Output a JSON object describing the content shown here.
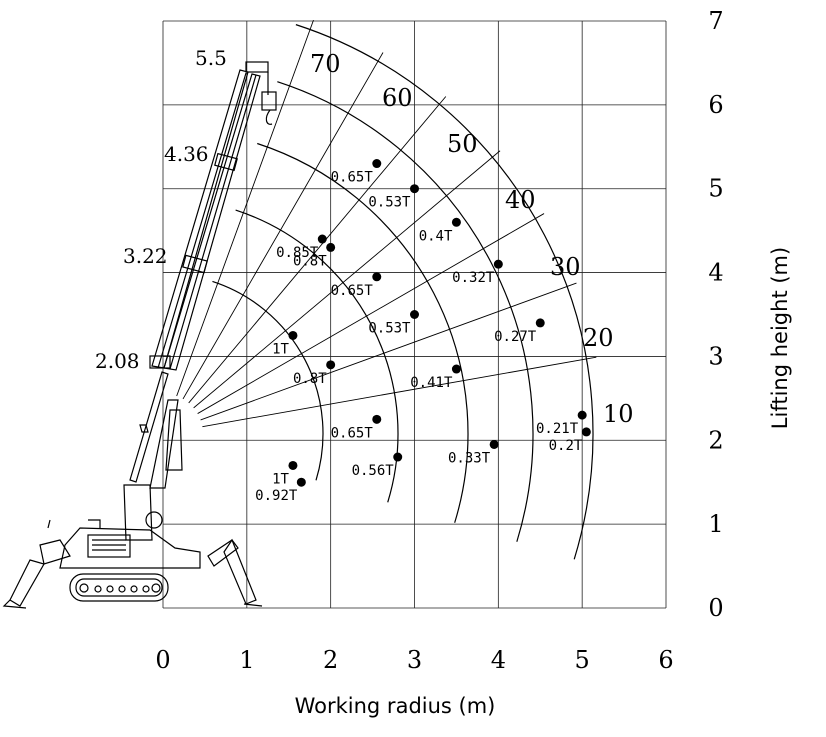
{
  "chart_data": {
    "type": "diagram",
    "xlabel": "Working radius (m)",
    "ylabel": "Lifting height (m)",
    "xlim": [
      0,
      6
    ],
    "ylim": [
      0,
      7
    ],
    "x_ticks": [
      "0",
      "1",
      "2",
      "3",
      "4",
      "5",
      "6"
    ],
    "y_ticks": [
      "0",
      "1",
      "2",
      "3",
      "4",
      "5",
      "6",
      "7"
    ],
    "grid": true,
    "boom_pivot": [
      0,
      2.08
    ],
    "boom_heights": [
      "2.08",
      "3.22",
      "4.36",
      "5.5"
    ],
    "angle_labels": [
      "70",
      "60",
      "50",
      "40",
      "30",
      "20",
      "10"
    ],
    "load_points": [
      {
        "label": "0.65T",
        "x": 2.55,
        "y": 5.3
      },
      {
        "label": "0.53T",
        "x": 3.0,
        "y": 5.0
      },
      {
        "label": "0.4T",
        "x": 3.5,
        "y": 4.6
      },
      {
        "label": "0.32T",
        "x": 4.0,
        "y": 4.1
      },
      {
        "label": "0.27T",
        "x": 4.5,
        "y": 3.4
      },
      {
        "label": "0.21T",
        "x": 5.0,
        "y": 2.3
      },
      {
        "label": "0.2T",
        "x": 5.05,
        "y": 2.1
      },
      {
        "label": "0.85T",
        "x": 1.9,
        "y": 4.4
      },
      {
        "label": "0.8T",
        "x": 2.0,
        "y": 4.3
      },
      {
        "label": "0.65T",
        "x": 2.55,
        "y": 3.95
      },
      {
        "label": "0.53T",
        "x": 3.0,
        "y": 3.5
      },
      {
        "label": "0.41T",
        "x": 3.5,
        "y": 2.85
      },
      {
        "label": "0.33T",
        "x": 3.95,
        "y": 1.95
      },
      {
        "label": "1T",
        "x": 1.55,
        "y": 3.25
      },
      {
        "label": "0.8T",
        "x": 2.0,
        "y": 2.9
      },
      {
        "label": "0.65T",
        "x": 2.55,
        "y": 2.25
      },
      {
        "label": "0.56T",
        "x": 2.8,
        "y": 1.8
      },
      {
        "label": "1T",
        "x": 1.55,
        "y": 1.7
      },
      {
        "label": "0.92T",
        "x": 1.65,
        "y": 1.5
      }
    ]
  }
}
